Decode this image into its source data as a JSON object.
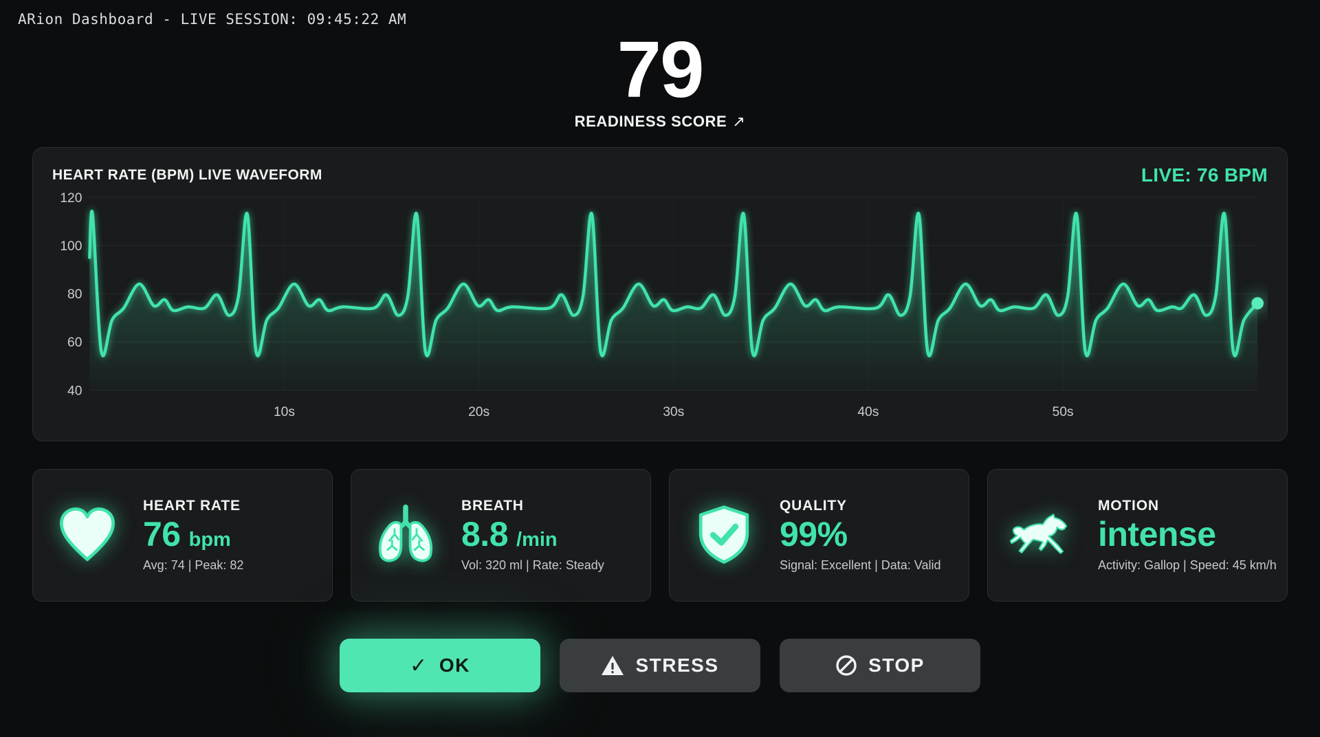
{
  "titlebar": {
    "text": "ARion Dashboard - LIVE SESSION: 09:45:22 AM"
  },
  "score": {
    "value": "79",
    "label": "READINESS SCORE",
    "trend_icon": "↗"
  },
  "waveform_panel": {
    "title": "HEART RATE (BPM) LIVE WAVEFORM",
    "live_label": "LIVE: 76 BPM"
  },
  "chart_data": {
    "type": "line",
    "title": "HEART RATE (BPM) LIVE WAVEFORM",
    "x_unit": "seconds",
    "x_range_s": [
      0,
      60
    ],
    "x_ticks": [
      {
        "s": 10,
        "label": "10s"
      },
      {
        "s": 20,
        "label": "20s"
      },
      {
        "s": 30,
        "label": "30s"
      },
      {
        "s": 40,
        "label": "40s"
      },
      {
        "s": 50,
        "label": "50s"
      }
    ],
    "y_unit": "bpm",
    "y_range": [
      40,
      120
    ],
    "y_ticks": [
      {
        "bpm": 120,
        "label": "120"
      },
      {
        "bpm": 100,
        "label": "100"
      },
      {
        "bpm": 80,
        "label": "80"
      },
      {
        "bpm": 60,
        "label": "60"
      },
      {
        "bpm": 40,
        "label": "40"
      }
    ],
    "grid": true,
    "legend": "none",
    "line_color": "#41e3ab",
    "fill_gradient": [
      "rgba(65,227,171,0.33)",
      "rgba(65,227,171,0.02)"
    ],
    "baseline_bpm": 74,
    "spike_bpm": 113,
    "dip_bpm": 56,
    "t_wave_bpm": 84,
    "edge_start_bpm": 95,
    "live_dot_bpm": 76,
    "beat_times_s": [
      0.15,
      8.1,
      16.8,
      25.8,
      33.6,
      42.6,
      50.7,
      58.3
    ],
    "beat_pattern_before": [
      [
        -2.2,
        74
      ],
      [
        -1.55,
        79.5
      ],
      [
        -0.95,
        71
      ],
      [
        -0.45,
        79
      ]
    ],
    "beat_pattern_after": [
      [
        0.45,
        56
      ],
      [
        1.0,
        69
      ],
      [
        1.6,
        74
      ],
      [
        2.4,
        84
      ],
      [
        3.15,
        75
      ],
      [
        3.7,
        77.5
      ],
      [
        4.15,
        73
      ],
      [
        4.9,
        74.5
      ]
    ]
  },
  "cards": [
    {
      "icon": "heart-icon",
      "label": "HEART RATE",
      "value": "76",
      "unit": "bpm",
      "sub": "Avg: 74 | Peak: 82"
    },
    {
      "icon": "lungs-icon",
      "label": "BREATH",
      "value": "8.8",
      "unit": "/min",
      "sub": "Vol: 320 ml | Rate: Steady"
    },
    {
      "icon": "shield-check-icon",
      "label": "QUALITY",
      "value": "99%",
      "unit": "",
      "sub": "Signal: Excellent | Data: Valid"
    },
    {
      "icon": "horse-icon",
      "label": "MOTION",
      "value": "intense",
      "unit": "",
      "sub": "Activity: Gallop | Speed: 45 km/h"
    }
  ],
  "buttons": [
    {
      "id": "ok",
      "label": "OK",
      "icon": "check-icon"
    },
    {
      "id": "stress",
      "label": "STRESS",
      "icon": "warning-icon"
    },
    {
      "id": "stop",
      "label": "STOP",
      "icon": "prohibition-icon"
    }
  ],
  "colors": {
    "accent": "#41e3ab",
    "page_bg": "#0c0d0e",
    "panel_bg": "#191b1c",
    "panel_border": "#2b2e2f",
    "button_ok_bg": "#4fe6b1",
    "button_dark_bg": "#393d3f",
    "sub_text": "#c7cacc"
  }
}
